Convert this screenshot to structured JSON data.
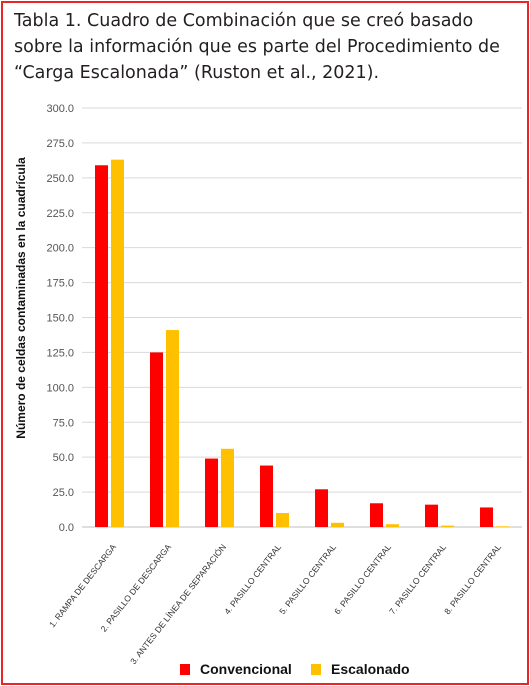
{
  "figure": {
    "title_lines": [
      "Tabla 1. Cuadro de Combinación que se creó basado",
      "sobre la información que es parte del Procedimiento de",
      "“Carga Escalonada” (Ruston et al., 2021)."
    ]
  },
  "chart_data": {
    "type": "bar",
    "title": "",
    "xlabel": "",
    "ylabel": "Número de celdas contaminadas en la cuadrícula",
    "ylim": [
      0,
      300
    ],
    "yticks": [
      "0.0",
      "25.0",
      "50.0",
      "75.0",
      "100.0",
      "125.0",
      "150.0",
      "175.0",
      "200.0",
      "225.0",
      "250.0",
      "275.0",
      "300.0"
    ],
    "grid": true,
    "legend_position": "bottom",
    "categories": [
      "1. RAMPA DE DESCARGA",
      "2. PASILLO DE DESCARGA",
      "3. ANTES DE LÍNEA DE SEPARACIÓN",
      "4. PASILLO CENTRAL",
      "5. PASILLO CENTRAL",
      "6. PASILLO CENTRAL",
      "7. PASILLO CENTRAL",
      "8. PASILLO CENTRAL"
    ],
    "series": [
      {
        "name": "Convencional",
        "color": "#ff0000",
        "values": [
          259,
          125,
          49,
          44,
          27,
          17,
          16,
          14
        ]
      },
      {
        "name": "Escalonado",
        "color": "#ffc000",
        "values": [
          263,
          141,
          56,
          10,
          3,
          2,
          1,
          0.5
        ]
      }
    ]
  }
}
